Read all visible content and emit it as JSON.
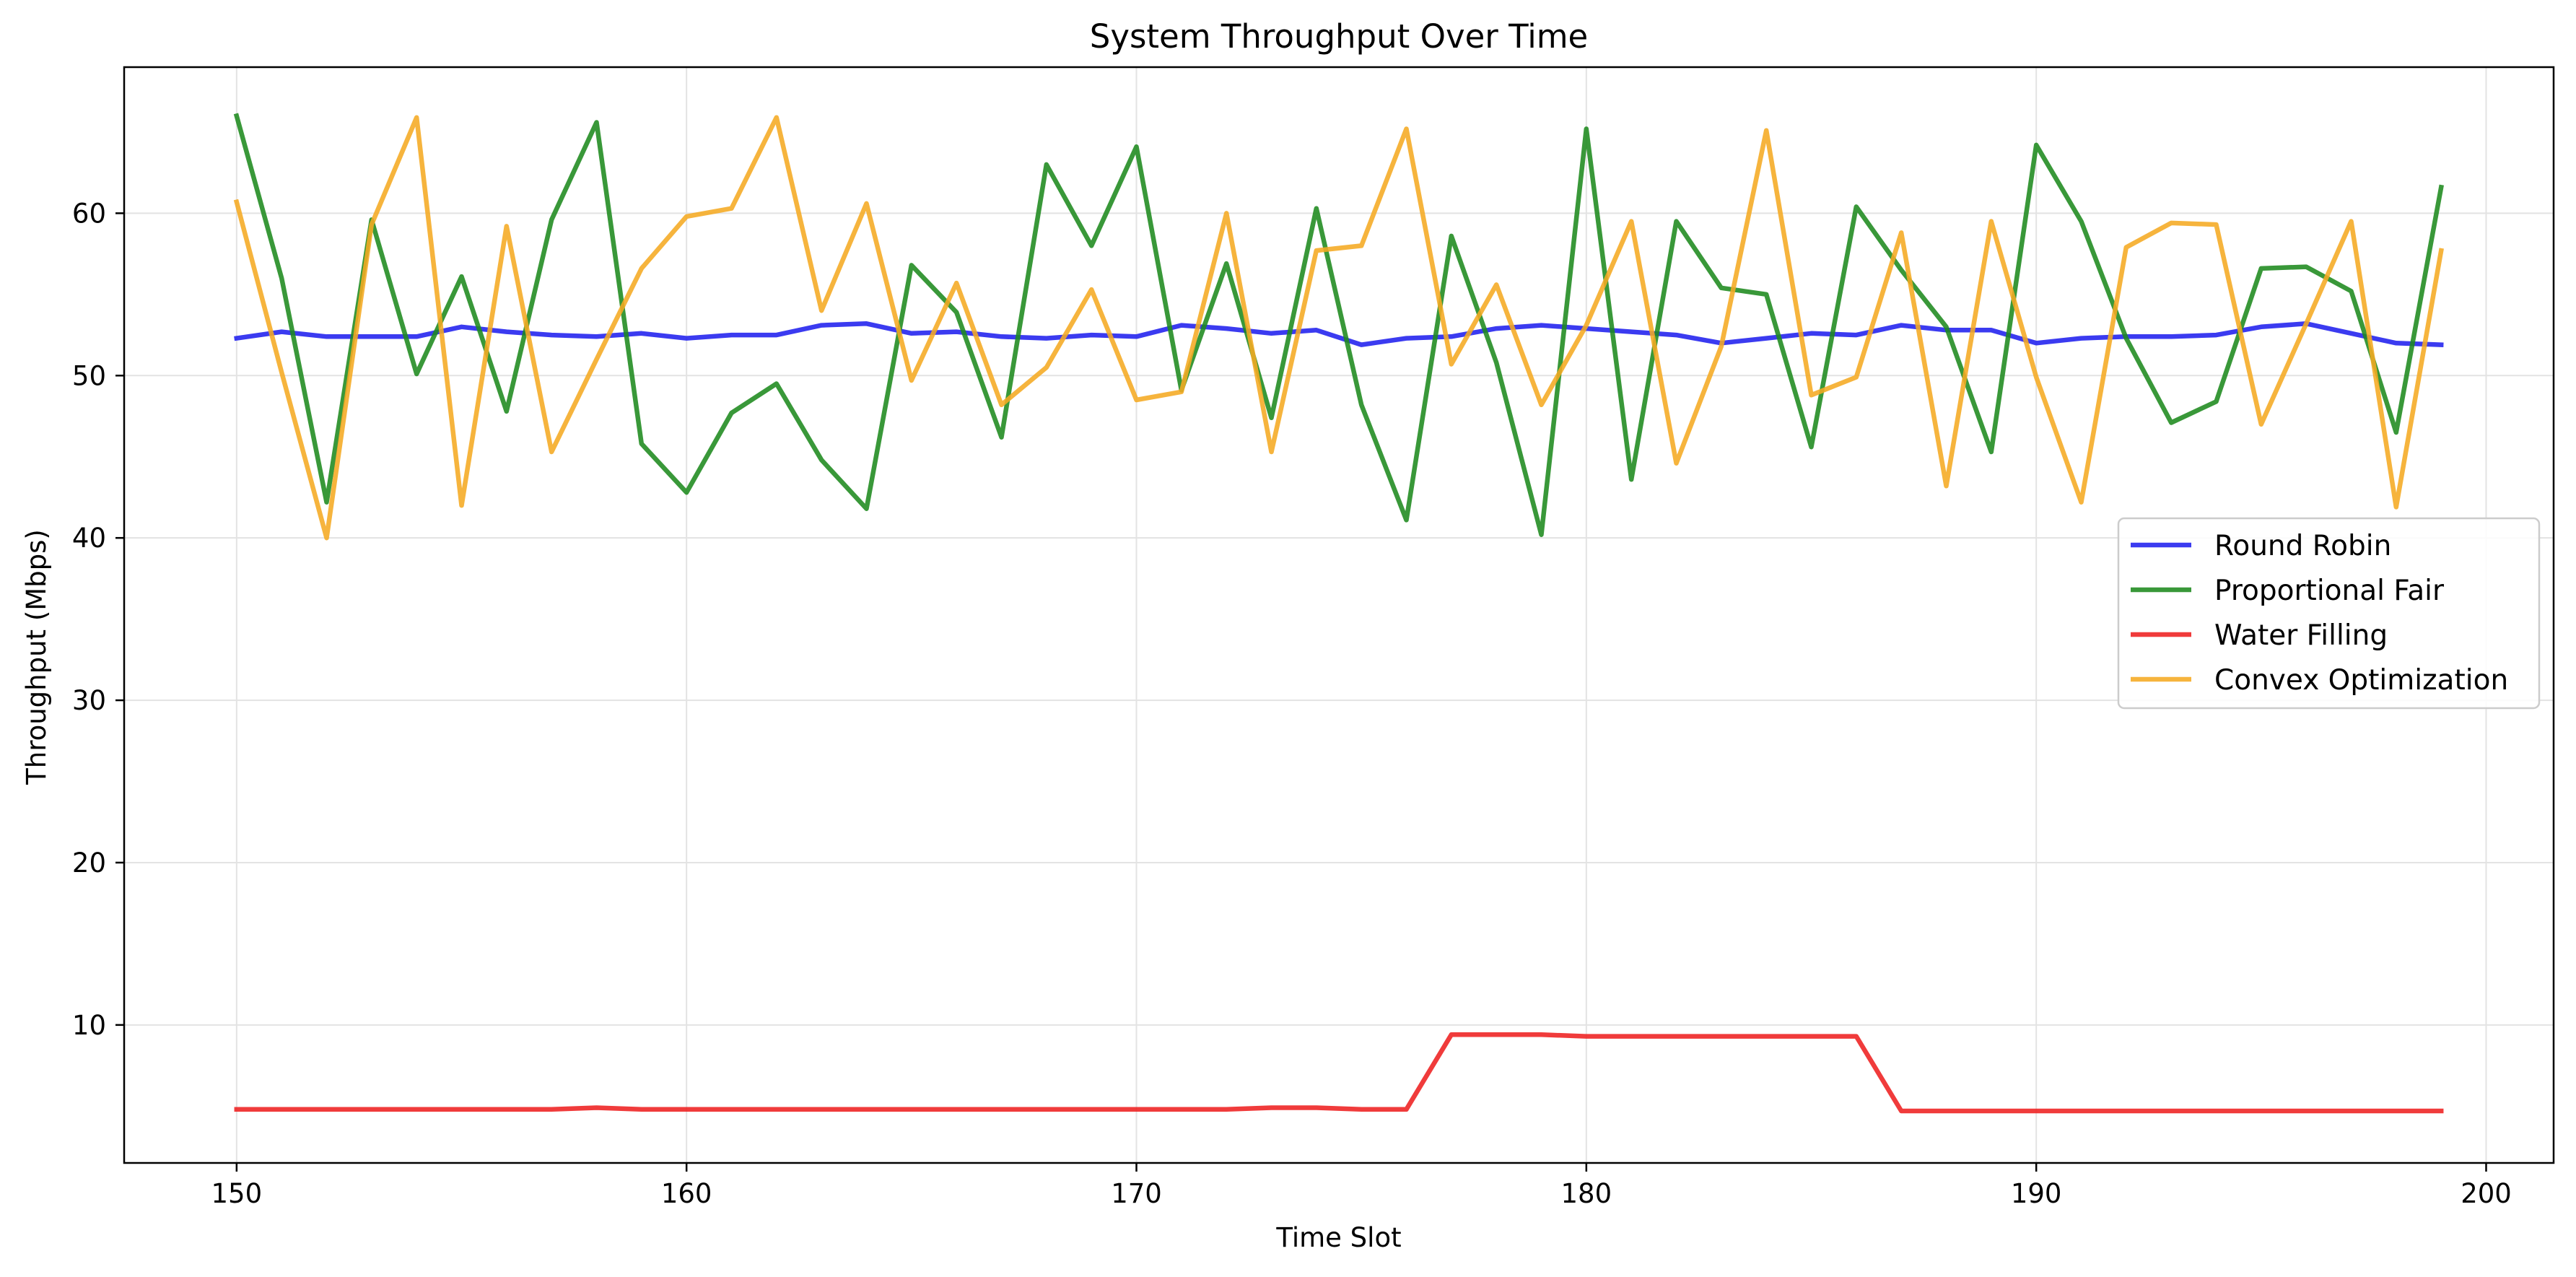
{
  "chart_data": {
    "type": "line",
    "title": "System Throughput Over Time",
    "xlabel": "Time Slot",
    "ylabel": "Throughput (Mbps)",
    "xlim": [
      147.5,
      201.5
    ],
    "ylim": [
      1.5,
      69
    ],
    "xticks": [
      150,
      160,
      170,
      180,
      190,
      200
    ],
    "yticks": [
      10,
      20,
      30,
      40,
      50,
      60
    ],
    "grid": true,
    "legend_position": "center-right",
    "x": [
      150,
      151,
      152,
      153,
      154,
      155,
      156,
      157,
      158,
      159,
      160,
      161,
      162,
      163,
      164,
      165,
      166,
      167,
      168,
      169,
      170,
      171,
      172,
      173,
      174,
      175,
      176,
      177,
      178,
      179,
      180,
      181,
      182,
      183,
      184,
      185,
      186,
      187,
      188,
      189,
      190,
      191,
      192,
      193,
      194,
      195,
      196,
      197,
      198,
      199
    ],
    "series": [
      {
        "name": "Round Robin",
        "color": "#2020ee",
        "values": [
          52.3,
          52.7,
          52.4,
          52.4,
          52.4,
          53.0,
          52.7,
          52.5,
          52.4,
          52.6,
          52.3,
          52.5,
          52.5,
          53.1,
          53.2,
          52.6,
          52.7,
          52.4,
          52.3,
          52.5,
          52.4,
          53.1,
          52.9,
          52.6,
          52.8,
          51.9,
          52.3,
          52.4,
          52.9,
          53.1,
          52.9,
          52.7,
          52.5,
          52.0,
          52.3,
          52.6,
          52.5,
          53.1,
          52.8,
          52.8,
          52.0,
          52.3,
          52.4,
          52.4,
          52.5,
          53.0,
          53.2,
          52.6,
          52.0,
          51.9
        ]
      },
      {
        "name": "Proportional Fair",
        "color": "#1e8a1e",
        "values": [
          66.0,
          56.0,
          42.2,
          59.6,
          50.1,
          56.1,
          47.8,
          59.6,
          65.6,
          45.8,
          42.8,
          47.7,
          49.5,
          44.8,
          41.8,
          56.8,
          53.9,
          46.2,
          63.0,
          58.0,
          64.1,
          49.1,
          56.9,
          47.4,
          60.3,
          48.2,
          41.1,
          58.6,
          50.8,
          40.2,
          65.2,
          43.6,
          59.5,
          55.4,
          55.0,
          45.6,
          60.4,
          56.5,
          53.0,
          45.3,
          64.2,
          59.5,
          52.3,
          47.1,
          48.4,
          56.6,
          56.7,
          55.2,
          46.5,
          61.6
        ]
      },
      {
        "name": "Water Filling",
        "color": "#ee2020",
        "values": [
          4.8,
          4.8,
          4.8,
          4.8,
          4.8,
          4.8,
          4.8,
          4.8,
          4.9,
          4.8,
          4.8,
          4.8,
          4.8,
          4.8,
          4.8,
          4.8,
          4.8,
          4.8,
          4.8,
          4.8,
          4.8,
          4.8,
          4.8,
          4.9,
          4.9,
          4.8,
          4.8,
          9.4,
          9.4,
          9.4,
          9.3,
          9.3,
          9.3,
          9.3,
          9.3,
          9.3,
          9.3,
          4.7,
          4.7,
          4.7,
          4.7,
          4.7,
          4.7,
          4.7,
          4.7,
          4.7,
          4.7,
          4.7,
          4.7,
          4.7
        ]
      },
      {
        "name": "Convex Optimization",
        "color": "#f5aa22",
        "values": [
          60.7,
          50.2,
          40.0,
          59.3,
          65.9,
          42.0,
          59.2,
          45.3,
          51.0,
          56.6,
          59.8,
          60.3,
          65.9,
          54.0,
          60.6,
          49.7,
          55.7,
          48.2,
          50.5,
          55.3,
          48.5,
          49.0,
          60.0,
          45.3,
          57.7,
          58.0,
          65.2,
          50.7,
          55.6,
          48.2,
          53.1,
          59.5,
          44.6,
          51.8,
          65.1,
          48.8,
          49.9,
          58.8,
          43.2,
          59.5,
          49.9,
          42.2,
          57.9,
          59.4,
          59.3,
          47.0,
          53.2,
          59.5,
          41.9,
          57.7
        ]
      }
    ]
  }
}
